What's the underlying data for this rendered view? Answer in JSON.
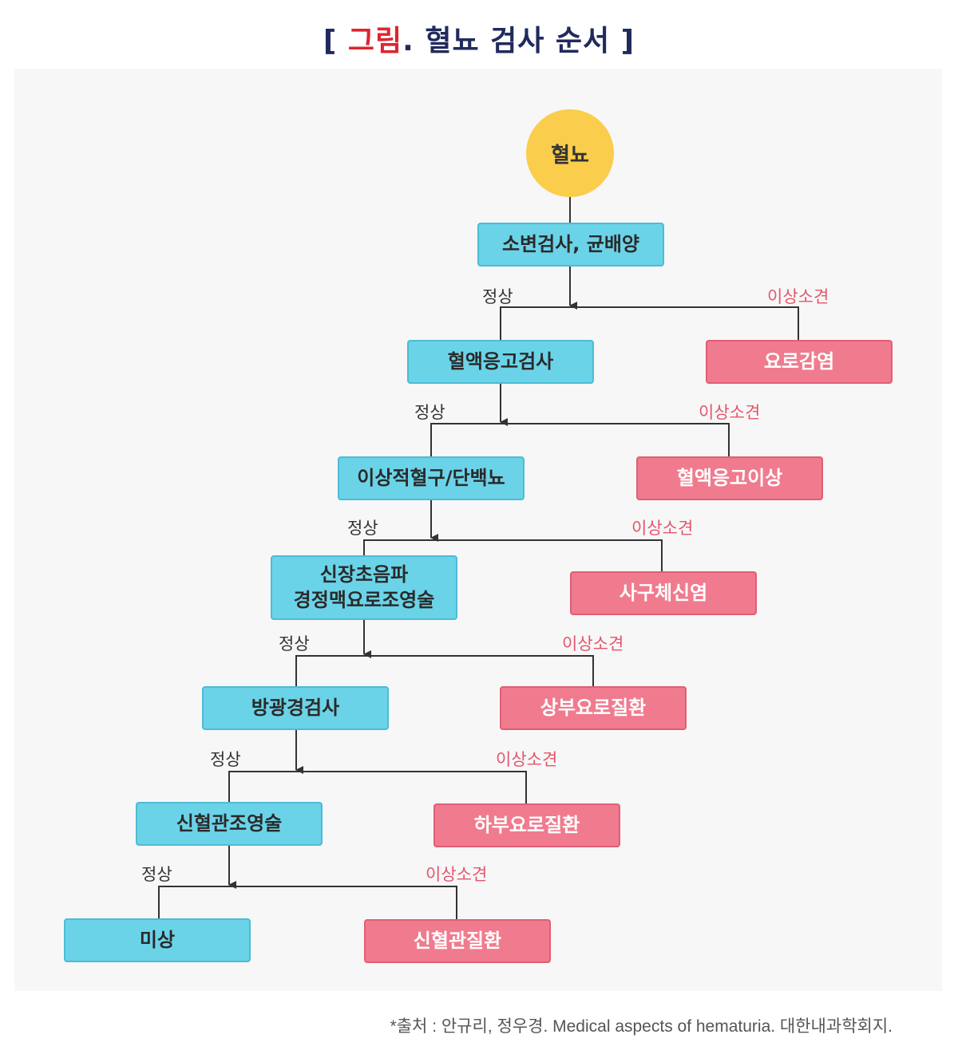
{
  "title": {
    "bracket_open": "[",
    "accent": "그림",
    "rest": ". 혈뇨 검사 순서",
    "bracket_close": "]"
  },
  "start_node": "혈뇨",
  "steps": [
    {
      "test": "소변검사, 균배양",
      "normal": "정상",
      "abnormal": "이상소견",
      "result": "요로감염"
    },
    {
      "test": "혈액응고검사",
      "normal": "정상",
      "abnormal": "이상소견",
      "result": "혈액응고이상"
    },
    {
      "test": "이상적혈구/단백뇨",
      "normal": "정상",
      "abnormal": "이상소견",
      "result": "사구체신염"
    },
    {
      "test_line1": "신장초음파",
      "test_line2": "경정맥요로조영술",
      "normal": "정상",
      "abnormal": "이상소견",
      "result": "상부요로질환"
    },
    {
      "test": "방광경검사",
      "normal": "정상",
      "abnormal": "이상소견",
      "result": "하부요로질환"
    },
    {
      "test": "신혈관조영술",
      "normal": "정상",
      "abnormal": "이상소견",
      "result": "신혈관질환"
    }
  ],
  "final_node": "미상",
  "source": "*출처 : 안규리, 정우경. Medical aspects of hematuria. 대한내과학회지.",
  "colors": {
    "start": "#fbcd4c",
    "test": "#6bd3e8",
    "finding": "#f07b8e",
    "accent": "#e0242f",
    "title": "#202a5c"
  }
}
